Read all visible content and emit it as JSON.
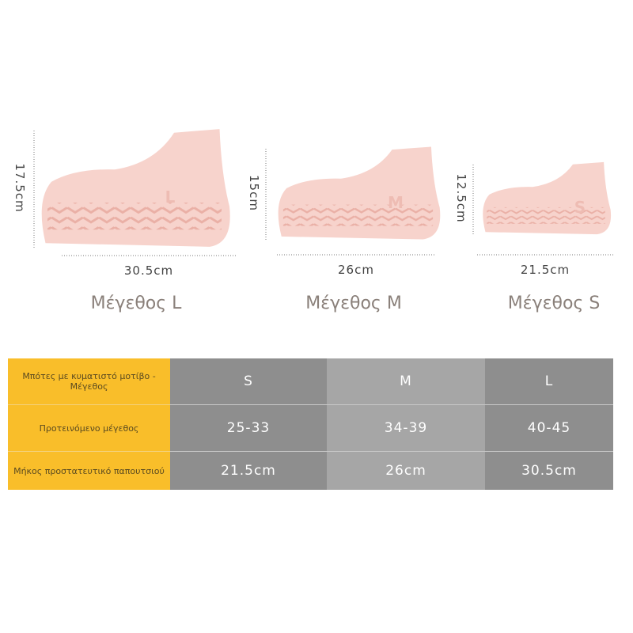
{
  "shoes": [
    {
      "letter": "L",
      "height": "17.5cm",
      "length": "30.5cm",
      "caption": "Μέγεθος L"
    },
    {
      "letter": "M",
      "height": "15cm",
      "length": "26cm",
      "caption": "Μέγεθος M"
    },
    {
      "letter": "S",
      "height": "12.5cm",
      "length": "21.5cm",
      "caption": "Μέγεθος S"
    }
  ],
  "table": {
    "rows": [
      [
        "Μπότες με κυματιστό μοτίβο - Μέγεθος",
        "S",
        "M",
        "L"
      ],
      [
        "Προτεινόμενο μέγεθος",
        "25-33",
        "34-39",
        "40-45"
      ],
      [
        "Μήκος προστατευτικό παπουτσιού",
        "21.5cm",
        "26cm",
        "30.5cm"
      ]
    ]
  }
}
